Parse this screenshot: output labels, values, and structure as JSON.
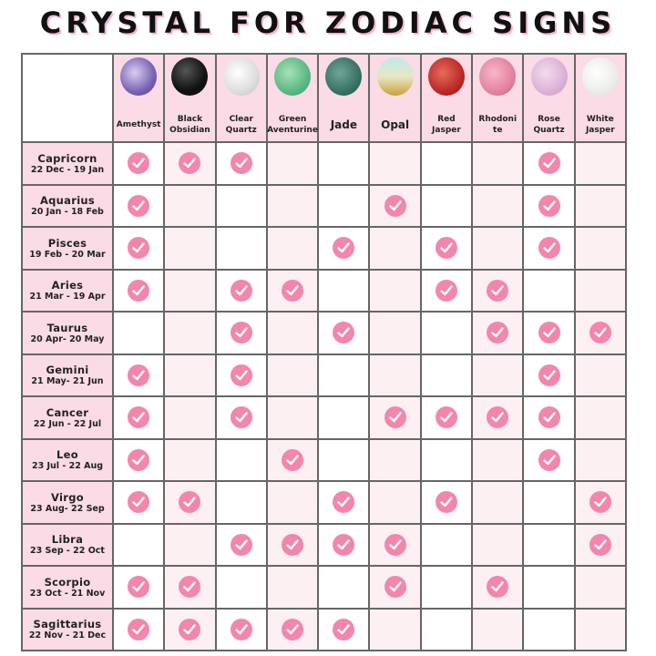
{
  "title": "CRYSTAL FOR ZODIAC SIGNS",
  "colors": {
    "header_bg": "#fadbe6",
    "alt_col_bg": "#fdf0f3",
    "check": "#f386ad",
    "border": "#666666"
  },
  "crystals": [
    {
      "name": "Amethyst",
      "color": "radial-gradient(circle at 40% 40%,#d9cdf0,#7b63b5 60%,#4e3a85)"
    },
    {
      "name": "Black Obsidian",
      "color": "radial-gradient(circle at 40% 35%,#555,#111 60%)"
    },
    {
      "name": "Clear Quartz",
      "color": "radial-gradient(circle at 40% 40%,#fff,#ddd 60%,#bbb)"
    },
    {
      "name": "Green Aventurine",
      "color": "radial-gradient(circle at 40% 40%,#a8e0b8,#4fb27a 70%)"
    },
    {
      "name": "Jade",
      "color": "radial-gradient(circle at 40% 40%,#6fa597,#2f6a5c 70%)"
    },
    {
      "name": "Opal",
      "color": "linear-gradient(#bfe8ee,#e8e7c4 50%,#c9a23c)"
    },
    {
      "name": "Red Jasper",
      "color": "radial-gradient(circle at 40% 40%,#e86a5a,#b32020 70%)"
    },
    {
      "name": "Rhodonite",
      "color": "radial-gradient(circle at 40% 40%,#f7b7c8,#e07a98 70%,#333)"
    },
    {
      "name": "Rose Quartz",
      "color": "radial-gradient(circle at 40% 40%,#f3dcef,#d8aad2 70%)"
    },
    {
      "name": "White Jasper",
      "color": "radial-gradient(circle at 40% 40%,#fff,#e9e9e6 70%,#d0d0cc)"
    }
  ],
  "crystal_labels": [
    "Amethyst",
    "Black Obsidian",
    "Clear Quartz",
    "Green Aventurine",
    "Jade",
    "Opal",
    "Red Jasper",
    "Rhodoni te",
    "Rose Quartz",
    "White Jasper"
  ],
  "signs": [
    {
      "name": "Capricorn",
      "dates": "22 Dec - 19 Jan",
      "checks": [
        1,
        1,
        1,
        0,
        0,
        0,
        0,
        0,
        1,
        0
      ]
    },
    {
      "name": "Aquarius",
      "dates": "20 Jan - 18 Feb",
      "checks": [
        1,
        0,
        0,
        0,
        0,
        1,
        0,
        0,
        1,
        0
      ]
    },
    {
      "name": "Pisces",
      "dates": "19 Feb - 20 Mar",
      "checks": [
        1,
        0,
        0,
        0,
        1,
        0,
        1,
        0,
        1,
        0
      ]
    },
    {
      "name": "Aries",
      "dates": "21 Mar - 19 Apr",
      "checks": [
        1,
        0,
        1,
        1,
        0,
        0,
        1,
        1,
        0,
        0
      ]
    },
    {
      "name": "Taurus",
      "dates": "20 Apr- 20 May",
      "checks": [
        0,
        0,
        1,
        0,
        1,
        0,
        0,
        1,
        1,
        1
      ]
    },
    {
      "name": "Gemini",
      "dates": "21 May- 21 Jun",
      "checks": [
        1,
        0,
        1,
        0,
        0,
        0,
        0,
        0,
        1,
        0
      ]
    },
    {
      "name": "Cancer",
      "dates": "22 Jun - 22 Jul",
      "checks": [
        1,
        0,
        1,
        0,
        0,
        1,
        1,
        1,
        1,
        0
      ]
    },
    {
      "name": "Leo",
      "dates": "23 Jul - 22 Aug",
      "checks": [
        1,
        0,
        0,
        1,
        0,
        0,
        0,
        0,
        1,
        0
      ]
    },
    {
      "name": "Virgo",
      "dates": "23 Aug- 22 Sep",
      "checks": [
        1,
        1,
        0,
        0,
        1,
        0,
        1,
        0,
        0,
        1
      ]
    },
    {
      "name": "Libra",
      "dates": "23 Sep - 22 Oct",
      "checks": [
        0,
        0,
        1,
        1,
        1,
        1,
        0,
        0,
        0,
        1
      ]
    },
    {
      "name": "Scorpio",
      "dates": "23 Oct - 21 Nov",
      "checks": [
        1,
        1,
        0,
        0,
        0,
        1,
        0,
        1,
        0,
        0
      ]
    },
    {
      "name": "Sagittarius",
      "dates": "22 Nov - 21 Dec",
      "checks": [
        1,
        1,
        1,
        1,
        1,
        0,
        0,
        0,
        0,
        0
      ]
    }
  ]
}
